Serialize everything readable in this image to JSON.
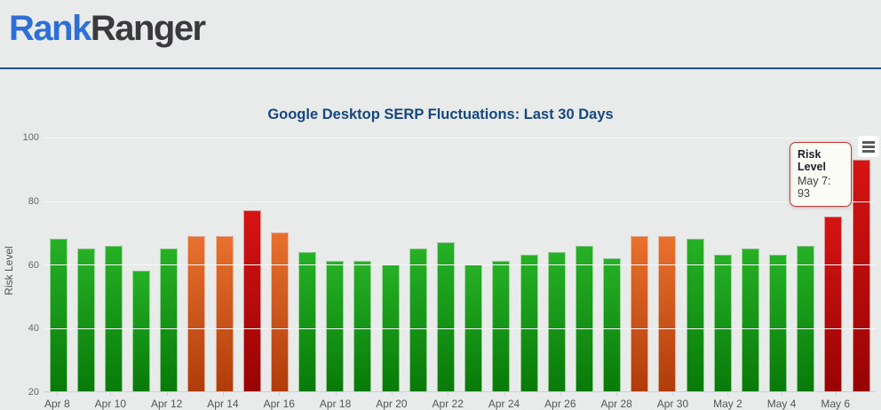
{
  "header": {
    "logo_rank": "Rank",
    "logo_ranger": "Ranger"
  },
  "tooltip": {
    "title": "Risk Level",
    "value": "May 7: 93"
  },
  "icons": {
    "export_menu": "hamburger-menu-icon"
  },
  "colors": {
    "accent_blue_line": "#1c4f8e",
    "logo_blue": "#2d6fd6",
    "logo_dark": "#3a3a3c",
    "title_blue": "#16477e",
    "tooltip_border_red": "#c53434"
  },
  "chart_data": {
    "type": "bar",
    "title": "Google Desktop SERP Fluctuations: Last 30 Days",
    "xlabel": "",
    "ylabel": "Risk Level",
    "ylim": [
      20,
      100
    ],
    "yticks": [
      100,
      80,
      60,
      40,
      20
    ],
    "grid": true,
    "legend": false,
    "x_label_interval": 2,
    "categories": [
      "Apr 8",
      "Apr 9",
      "Apr 10",
      "Apr 11",
      "Apr 12",
      "Apr 13",
      "Apr 14",
      "Apr 15",
      "Apr 16",
      "Apr 17",
      "Apr 18",
      "Apr 19",
      "Apr 20",
      "Apr 21",
      "Apr 22",
      "Apr 23",
      "Apr 24",
      "Apr 25",
      "Apr 26",
      "Apr 27",
      "Apr 28",
      "Apr 29",
      "Apr 30",
      "May 1",
      "May 2",
      "May 3",
      "May 4",
      "May 5",
      "May 6",
      "May 7"
    ],
    "values": [
      68,
      65,
      66,
      58,
      65,
      69,
      69,
      77,
      70,
      64,
      61,
      61,
      60,
      65,
      67,
      60,
      61,
      63,
      64,
      66,
      62,
      69,
      69,
      68,
      63,
      65,
      63,
      66,
      75,
      93
    ],
    "levels": [
      "green",
      "green",
      "green",
      "green",
      "green",
      "orange",
      "orange",
      "red",
      "orange",
      "green",
      "green",
      "green",
      "green",
      "green",
      "green",
      "green",
      "green",
      "green",
      "green",
      "green",
      "green",
      "orange",
      "orange",
      "green",
      "green",
      "green",
      "green",
      "green",
      "red",
      "red"
    ],
    "palette": {
      "green": [
        "#26b126",
        "#087a08"
      ],
      "orange": [
        "#e8712e",
        "#b03c0a"
      ],
      "red": [
        "#d61414",
        "#980303"
      ]
    }
  }
}
